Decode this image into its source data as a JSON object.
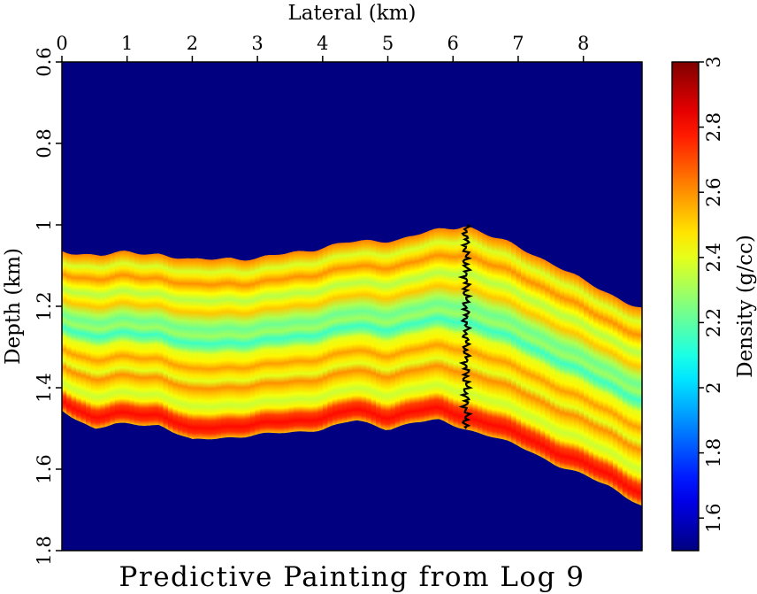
{
  "chart_data": {
    "type": "heatmap",
    "title": "Predictive Painting from Log 9",
    "xlabel": "Lateral (km)",
    "ylabel": "Depth (km)",
    "colorbar_label": "Density (g/cc)",
    "x_axis_position": "top",
    "xlim": [
      0,
      8.9
    ],
    "ylim": [
      0.6,
      1.8
    ],
    "y_inverted": true,
    "x_ticks": [
      "0",
      "1",
      "2",
      "3",
      "4",
      "5",
      "6",
      "7",
      "8"
    ],
    "y_ticks": [
      "0.6",
      "0.8",
      "1",
      "1.2",
      "1.4",
      "1.6",
      "1.8"
    ],
    "colorbar_range": [
      1.5,
      3.0
    ],
    "colorbar_ticks": [
      "1.6",
      "1.8",
      "2",
      "2.2",
      "2.4",
      "2.6",
      "2.8",
      "3"
    ],
    "colormap": "jet",
    "background_value": 1.5,
    "well_log": {
      "name": "Log 9",
      "x": 6.2,
      "top_depth": 1.0,
      "bottom_depth": 1.5
    },
    "layer_top": {
      "x": [
        0.0,
        0.6,
        1.0,
        1.5,
        2.0,
        2.6,
        3.0,
        3.5,
        4.0,
        4.4,
        4.8,
        5.2,
        5.6,
        6.0,
        6.2,
        6.6,
        7.2,
        7.6,
        8.0,
        8.4,
        8.9
      ],
      "depth": [
        1.065,
        1.075,
        1.07,
        1.07,
        1.09,
        1.08,
        1.085,
        1.07,
        1.055,
        1.045,
        1.04,
        1.035,
        1.02,
        1.008,
        1.0,
        1.03,
        1.07,
        1.1,
        1.14,
        1.17,
        1.205
      ]
    },
    "layer_bottom": {
      "x": [
        0.0,
        0.5,
        0.8,
        1.5,
        2.0,
        2.6,
        3.0,
        3.5,
        4.0,
        4.5,
        5.0,
        5.4,
        5.8,
        6.2,
        6.6,
        7.2,
        7.6,
        8.0,
        8.4,
        8.9
      ],
      "depth": [
        1.455,
        1.5,
        1.49,
        1.49,
        1.53,
        1.52,
        1.515,
        1.51,
        1.5,
        1.48,
        1.5,
        1.485,
        1.48,
        1.5,
        1.52,
        1.555,
        1.59,
        1.615,
        1.64,
        1.69
      ]
    },
    "stratigraphy": [
      {
        "frac": 0.0,
        "density": 2.62
      },
      {
        "frac": 0.03,
        "density": 2.55
      },
      {
        "frac": 0.07,
        "density": 2.38
      },
      {
        "frac": 0.1,
        "density": 2.47
      },
      {
        "frac": 0.14,
        "density": 2.6
      },
      {
        "frac": 0.19,
        "density": 2.44
      },
      {
        "frac": 0.23,
        "density": 2.33
      },
      {
        "frac": 0.27,
        "density": 2.45
      },
      {
        "frac": 0.3,
        "density": 2.52
      },
      {
        "frac": 0.35,
        "density": 2.32
      },
      {
        "frac": 0.39,
        "density": 2.22
      },
      {
        "frac": 0.43,
        "density": 2.3
      },
      {
        "frac": 0.47,
        "density": 2.15
      },
      {
        "frac": 0.5,
        "density": 2.24
      },
      {
        "frac": 0.53,
        "density": 2.4
      },
      {
        "frac": 0.57,
        "density": 2.45
      },
      {
        "frac": 0.61,
        "density": 2.58
      },
      {
        "frac": 0.65,
        "density": 2.47
      },
      {
        "frac": 0.68,
        "density": 2.4
      },
      {
        "frac": 0.72,
        "density": 2.6
      },
      {
        "frac": 0.76,
        "density": 2.5
      },
      {
        "frac": 0.79,
        "density": 2.42
      },
      {
        "frac": 0.82,
        "density": 2.36
      },
      {
        "frac": 0.86,
        "density": 2.45
      },
      {
        "frac": 0.9,
        "density": 2.72
      },
      {
        "frac": 0.94,
        "density": 2.8
      },
      {
        "frac": 0.97,
        "density": 2.74
      },
      {
        "frac": 1.0,
        "density": 2.55
      }
    ]
  }
}
